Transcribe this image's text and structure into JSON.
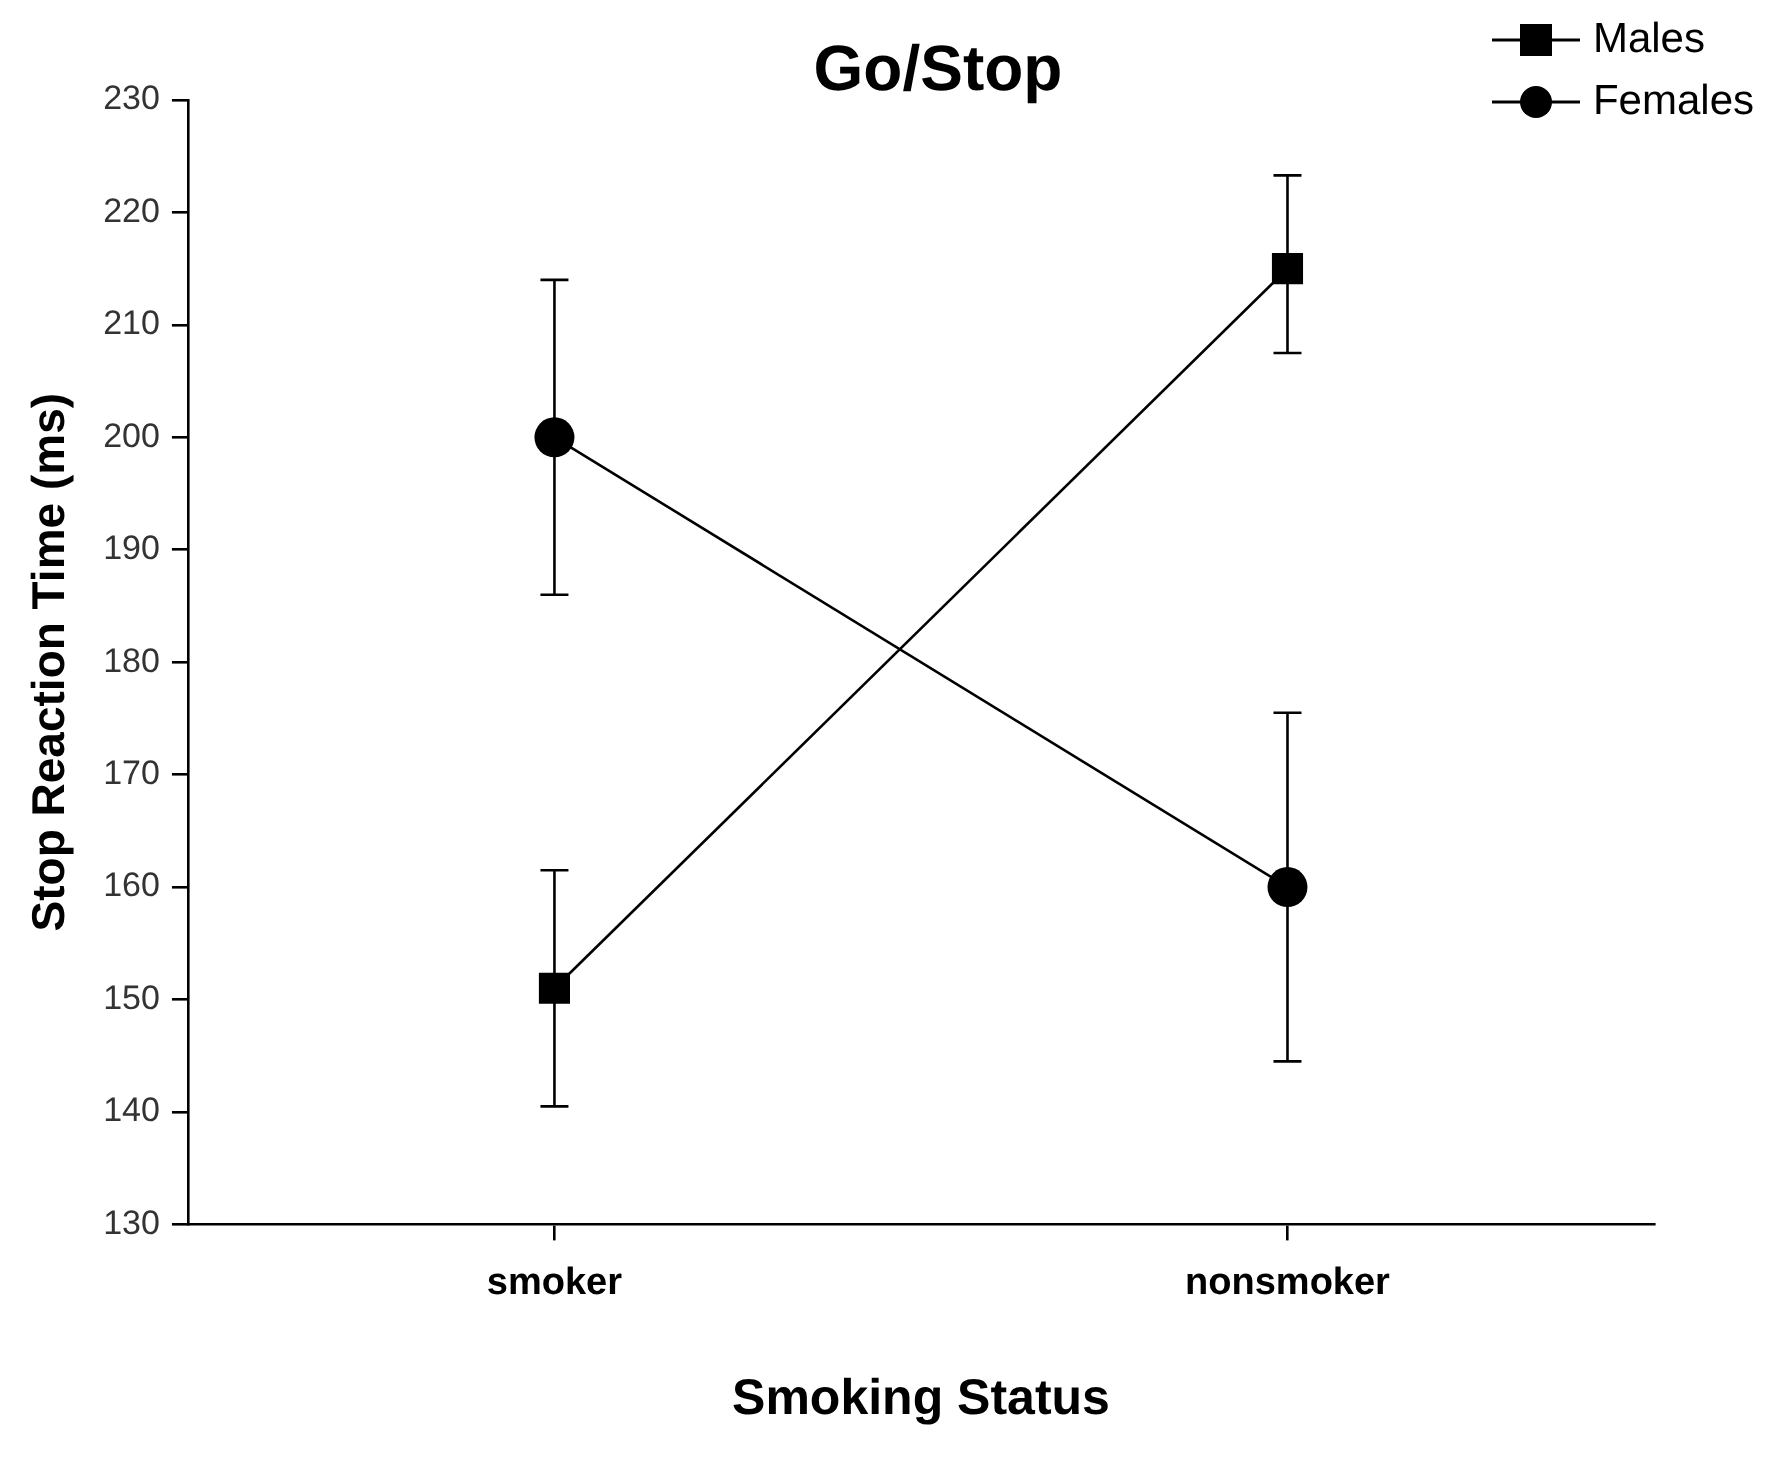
{
  "chart_data": {
    "type": "line",
    "title": "Go/Stop",
    "xlabel": "Smoking Status",
    "ylabel": "Stop Reaction Time (ms)",
    "categories": [
      "smoker",
      "nonsmoker"
    ],
    "series": [
      {
        "name": "Males",
        "color": "#000000",
        "marker": "square",
        "values": [
          151,
          215
        ],
        "errors": [
          [
            140.5,
            161.5
          ],
          [
            207.5,
            223.3
          ]
        ]
      },
      {
        "name": "Females",
        "color": "#000000",
        "marker": "circle",
        "values": [
          200,
          160
        ],
        "errors": [
          [
            186,
            214
          ],
          [
            144.5,
            175.5
          ]
        ]
      }
    ],
    "ylim": [
      130,
      230
    ],
    "yticks": [
      130,
      140,
      150,
      160,
      170,
      180,
      190,
      200,
      210,
      220,
      230
    ],
    "grid": false,
    "legend": "top right",
    "line_style": "solid"
  }
}
